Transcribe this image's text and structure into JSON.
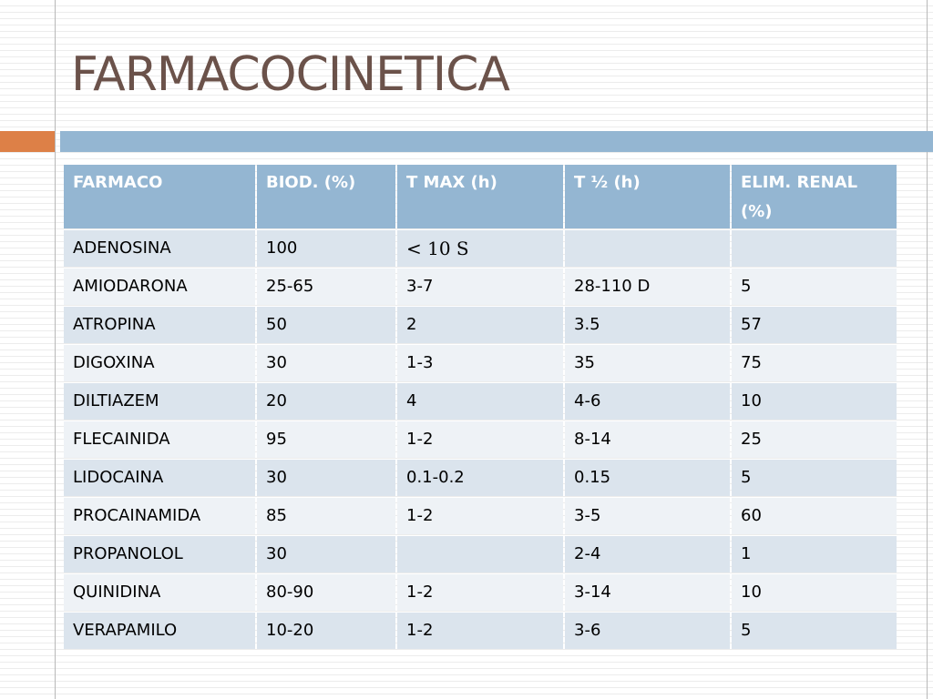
{
  "title": "FARMACOCINETICA",
  "colors": {
    "title": "#6b524a",
    "accent": "#dd8047",
    "header": "#94b6d2",
    "row_a": "#dbe4ed",
    "row_b": "#eef2f6"
  },
  "table": {
    "headers": [
      "FARMACO",
      "BIOD. (%)",
      "T MAX (h)",
      "T ½ (h)",
      "ELIM. RENAL (%)"
    ],
    "rows": [
      [
        "ADENOSINA",
        "100",
        "< 10 S",
        "",
        ""
      ],
      [
        "AMIODARONA",
        "25-65",
        "3-7",
        "28-110 D",
        "5"
      ],
      [
        "ATROPINA",
        "50",
        "2",
        "3.5",
        "57"
      ],
      [
        "DIGOXINA",
        "30",
        "1-3",
        "35",
        "75"
      ],
      [
        "DILTIAZEM",
        "20",
        "4",
        "4-6",
        "10"
      ],
      [
        "FLECAINIDA",
        "95",
        "1-2",
        "8-14",
        "25"
      ],
      [
        "LIDOCAINA",
        "30",
        "0.1-0.2",
        "0.15",
        "5"
      ],
      [
        "PROCAINAMIDA",
        "85",
        "1-2",
        "3-5",
        "60"
      ],
      [
        "PROPANOLOL",
        "30",
        "",
        "2-4",
        "1"
      ],
      [
        "QUINIDINA",
        "80-90",
        "1-2",
        "3-14",
        "10"
      ],
      [
        "VERAPAMILO",
        "10-20",
        "1-2",
        "3-6",
        "5"
      ]
    ]
  }
}
